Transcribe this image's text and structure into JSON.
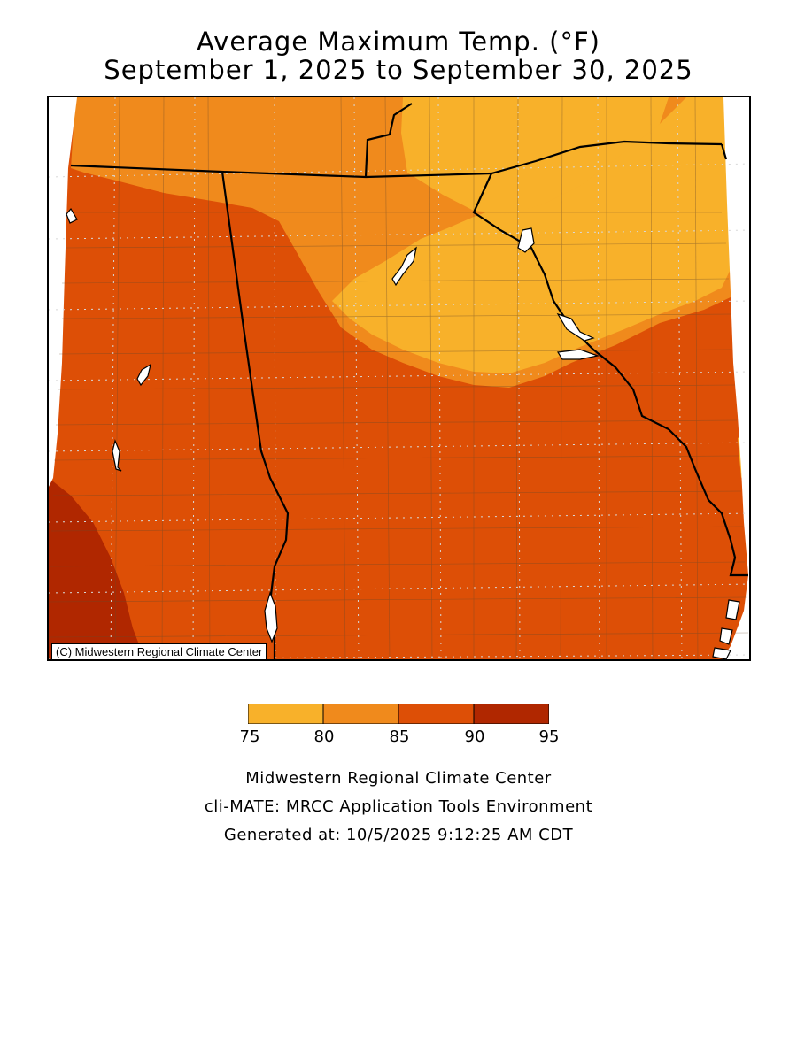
{
  "title": "Average Maximum Temp. (°F)",
  "subtitle": "September 1, 2025 to September 30, 2025",
  "credit": "(C) Midwestern Regional Climate Center",
  "legend": {
    "ticks": [
      "75",
      "80",
      "85",
      "90",
      "95"
    ],
    "bins": [
      {
        "range": "75-80",
        "color": "#f8b12a"
      },
      {
        "range": "80-85",
        "color": "#f08a1c"
      },
      {
        "range": "85-90",
        "color": "#dd4f06"
      },
      {
        "range": "90-95",
        "color": "#b02700"
      }
    ]
  },
  "footer": {
    "line1": "Midwestern Regional Climate Center",
    "line2": "cli-MATE: MRCC Application Tools Environment",
    "line3": "Generated at: 10/5/2025 9:12:25 AM CDT"
  }
}
